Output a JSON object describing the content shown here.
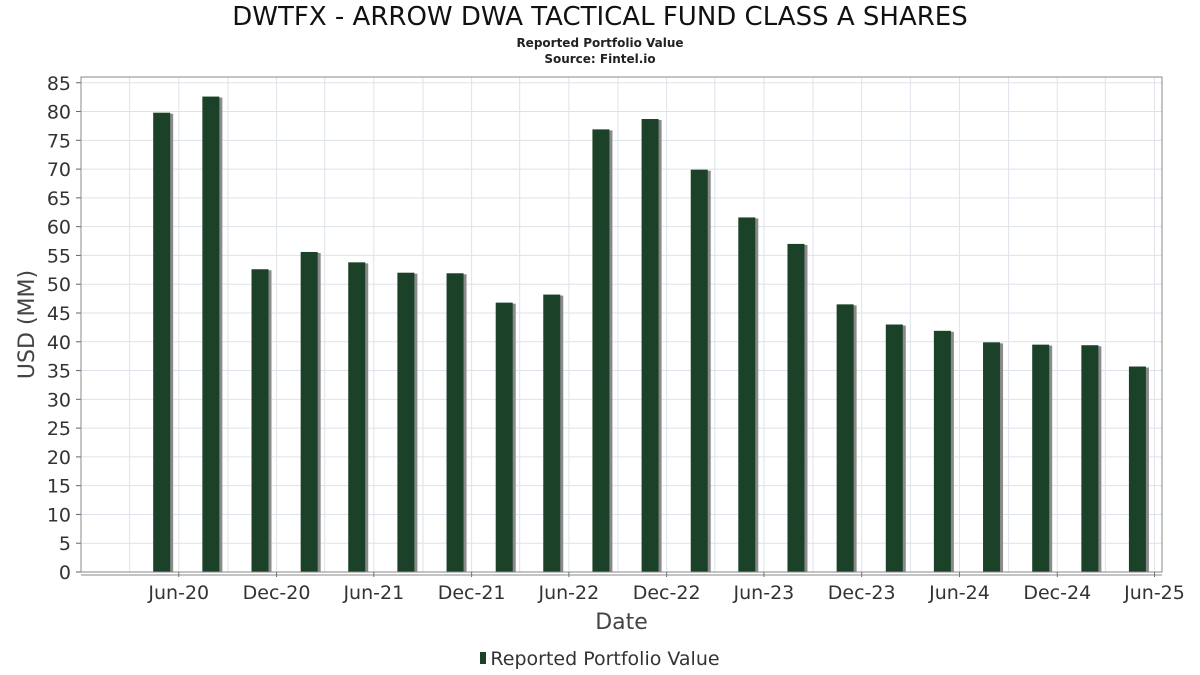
{
  "chart_data": {
    "type": "bar",
    "title": "DWTFX - ARROW DWA TACTICAL FUND CLASS A SHARES",
    "subtitle": "Reported Portfolio Value",
    "source": "Source: Fintel.io",
    "xlabel": "Date",
    "ylabel": "USD (MM)",
    "ylim": [
      0,
      86
    ],
    "y_ticks": [
      0,
      5,
      10,
      15,
      20,
      25,
      30,
      35,
      40,
      45,
      50,
      55,
      60,
      65,
      70,
      75,
      80,
      85
    ],
    "xlim": [
      "2019-12-01",
      "2025-06-15"
    ],
    "x_ticks": [
      {
        "label": "Jun-20",
        "date": "2020-06-01"
      },
      {
        "label": "Dec-20",
        "date": "2020-12-01"
      },
      {
        "label": "Jun-21",
        "date": "2021-06-01"
      },
      {
        "label": "Dec-21",
        "date": "2021-12-01"
      },
      {
        "label": "Jun-22",
        "date": "2022-06-01"
      },
      {
        "label": "Dec-22",
        "date": "2022-12-01"
      },
      {
        "label": "Jun-23",
        "date": "2023-06-01"
      },
      {
        "label": "Dec-23",
        "date": "2023-12-01"
      },
      {
        "label": "Jun-24",
        "date": "2024-06-01"
      },
      {
        "label": "Dec-24",
        "date": "2024-12-01"
      },
      {
        "label": "Jun-25",
        "date": "2025-06-01"
      }
    ],
    "grid": true,
    "legend_position": "bottom-center",
    "bar_color": "#1b4228",
    "shadow_color": "#8a8a8a",
    "series": [
      {
        "name": "Reported Portfolio Value",
        "points": [
          {
            "date": "2020-04-30",
            "value": 79.8
          },
          {
            "date": "2020-07-31",
            "value": 82.6
          },
          {
            "date": "2020-10-31",
            "value": 52.6
          },
          {
            "date": "2021-01-31",
            "value": 55.6
          },
          {
            "date": "2021-04-30",
            "value": 53.8
          },
          {
            "date": "2021-07-31",
            "value": 52.0
          },
          {
            "date": "2021-10-31",
            "value": 51.9
          },
          {
            "date": "2022-01-31",
            "value": 46.8
          },
          {
            "date": "2022-04-30",
            "value": 48.2
          },
          {
            "date": "2022-07-31",
            "value": 76.9
          },
          {
            "date": "2022-10-31",
            "value": 78.7
          },
          {
            "date": "2023-01-31",
            "value": 69.9
          },
          {
            "date": "2023-04-30",
            "value": 61.6
          },
          {
            "date": "2023-07-31",
            "value": 57.0
          },
          {
            "date": "2023-10-31",
            "value": 46.5
          },
          {
            "date": "2024-01-31",
            "value": 43.0
          },
          {
            "date": "2024-04-30",
            "value": 41.9
          },
          {
            "date": "2024-07-31",
            "value": 39.9
          },
          {
            "date": "2024-10-31",
            "value": 39.5
          },
          {
            "date": "2025-01-31",
            "value": 39.4
          },
          {
            "date": "2025-04-30",
            "value": 35.7
          }
        ]
      }
    ]
  }
}
